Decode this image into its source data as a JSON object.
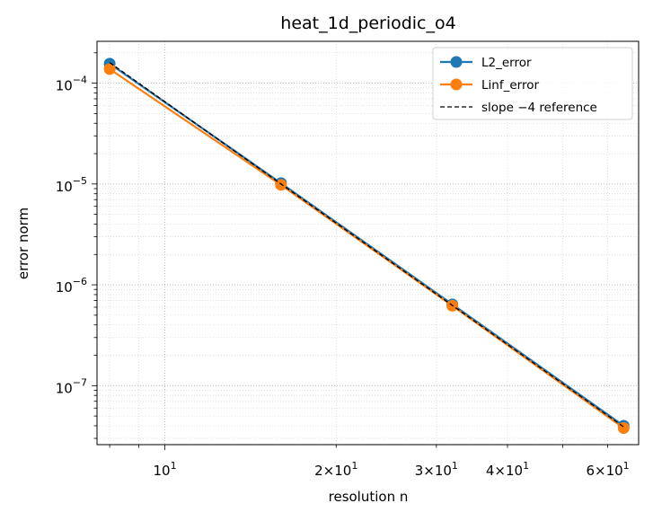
{
  "chart_data": {
    "type": "line",
    "title": "heat_1d_periodic_o4",
    "xlabel": "resolution n",
    "ylabel": "error norm",
    "xscale": "log",
    "yscale": "log",
    "xlim": [
      7.6,
      68
    ],
    "ylim": [
      2.6e-08,
      0.00026
    ],
    "x": [
      8,
      16,
      32,
      64
    ],
    "x_ticks": [
      {
        "value": 10,
        "base": "10",
        "exp": "1"
      },
      {
        "value": 20,
        "base": "2×10",
        "exp": "1"
      },
      {
        "value": 30,
        "base": "3×10",
        "exp": "1"
      },
      {
        "value": 40,
        "base": "4×10",
        "exp": "1"
      },
      {
        "value": 60,
        "base": "6×10",
        "exp": "1"
      }
    ],
    "y_ticks": [
      {
        "value": 1e-07,
        "base": "10",
        "exp": "−7"
      },
      {
        "value": 1e-06,
        "base": "10",
        "exp": "−6"
      },
      {
        "value": 1e-05,
        "base": "10",
        "exp": "−5"
      },
      {
        "value": 0.0001,
        "base": "10",
        "exp": "−4"
      }
    ],
    "series": [
      {
        "name": "L2_error",
        "color": "#1f77b4",
        "style": "solid",
        "marker": "circle",
        "values": [
          0.000156,
          1.02e-05,
          6.4e-07,
          4e-08
        ]
      },
      {
        "name": "Linf_error",
        "color": "#ff7f0e",
        "style": "solid",
        "marker": "circle",
        "values": [
          0.000138,
          9.8e-06,
          6.2e-07,
          3.8e-08
        ]
      },
      {
        "name": "slope −4 reference",
        "color": "#000000",
        "style": "dashed",
        "marker": "none",
        "values": [
          0.00016,
          1e-05,
          6.25e-07,
          3.9e-08
        ]
      }
    ],
    "grid": "major and minor, dotted",
    "legend_position": "top-right"
  }
}
